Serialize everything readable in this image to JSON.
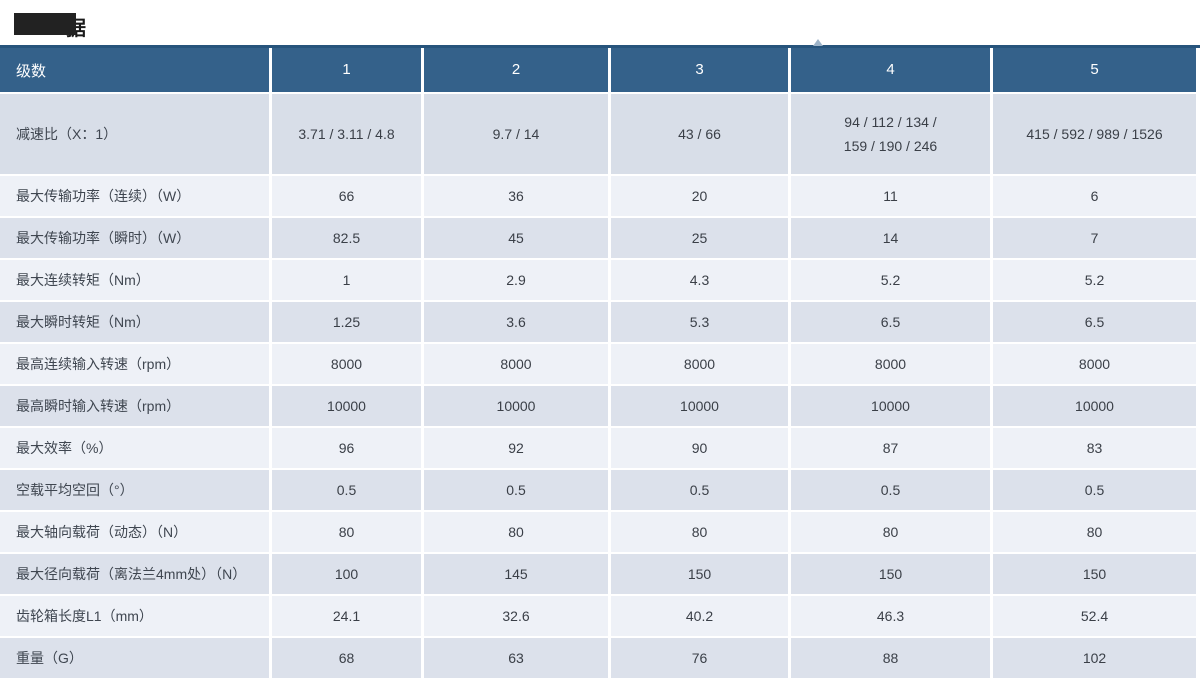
{
  "page": {
    "title_visible_char": "据"
  },
  "table": {
    "header": {
      "first_col": "级数",
      "stages": [
        "1",
        "2",
        "3",
        "4",
        "5"
      ]
    },
    "rows": [
      {
        "label": "减速比（X：1）",
        "values": [
          "3.71 / 3.11 / 4.8",
          "9.7 / 14",
          "43 / 66",
          "94 / 112 / 134 /\n159 / 190 / 246",
          "415 / 592 / 989 / 1526"
        ],
        "tall": true,
        "shade": "first"
      },
      {
        "label": "最大传输功率（连续）（W）",
        "values": [
          "66",
          "36",
          "20",
          "11",
          "6"
        ],
        "tall": false,
        "shade": "light"
      },
      {
        "label": "最大传输功率（瞬时）（W）",
        "values": [
          "82.5",
          "45",
          "25",
          "14",
          "7"
        ],
        "tall": false,
        "shade": "dark"
      },
      {
        "label": "最大连续转矩（Nm）",
        "values": [
          "1",
          "2.9",
          "4.3",
          "5.2",
          "5.2"
        ],
        "tall": false,
        "shade": "light"
      },
      {
        "label": "最大瞬时转矩（Nm）",
        "values": [
          "1.25",
          "3.6",
          "5.3",
          "6.5",
          "6.5"
        ],
        "tall": false,
        "shade": "dark"
      },
      {
        "label": "最高连续输入转速（rpm）",
        "values": [
          "8000",
          "8000",
          "8000",
          "8000",
          "8000"
        ],
        "tall": false,
        "shade": "light"
      },
      {
        "label": "最高瞬时输入转速（rpm）",
        "values": [
          "10000",
          "10000",
          "10000",
          "10000",
          "10000"
        ],
        "tall": false,
        "shade": "dark"
      },
      {
        "label": "最大效率（%）",
        "values": [
          "96",
          "92",
          "90",
          "87",
          "83"
        ],
        "tall": false,
        "shade": "light"
      },
      {
        "label": "空载平均空回（°）",
        "values": [
          "0.5",
          "0.5",
          "0.5",
          "0.5",
          "0.5"
        ],
        "tall": false,
        "shade": "dark"
      },
      {
        "label": "最大轴向载荷（动态）（N）",
        "values": [
          "80",
          "80",
          "80",
          "80",
          "80"
        ],
        "tall": false,
        "shade": "light"
      },
      {
        "label": "最大径向载荷（离法兰4mm处）（N）",
        "values": [
          "100",
          "145",
          "150",
          "150",
          "150"
        ],
        "tall": false,
        "shade": "dark"
      },
      {
        "label": "齿轮箱长度L1（mm）",
        "values": [
          "24.1",
          "32.6",
          "40.2",
          "46.3",
          "52.4"
        ],
        "tall": false,
        "shade": "light"
      },
      {
        "label": "重量（G）",
        "values": [
          "68",
          "63",
          "76",
          "88",
          "102"
        ],
        "tall": false,
        "shade": "dark"
      }
    ]
  }
}
